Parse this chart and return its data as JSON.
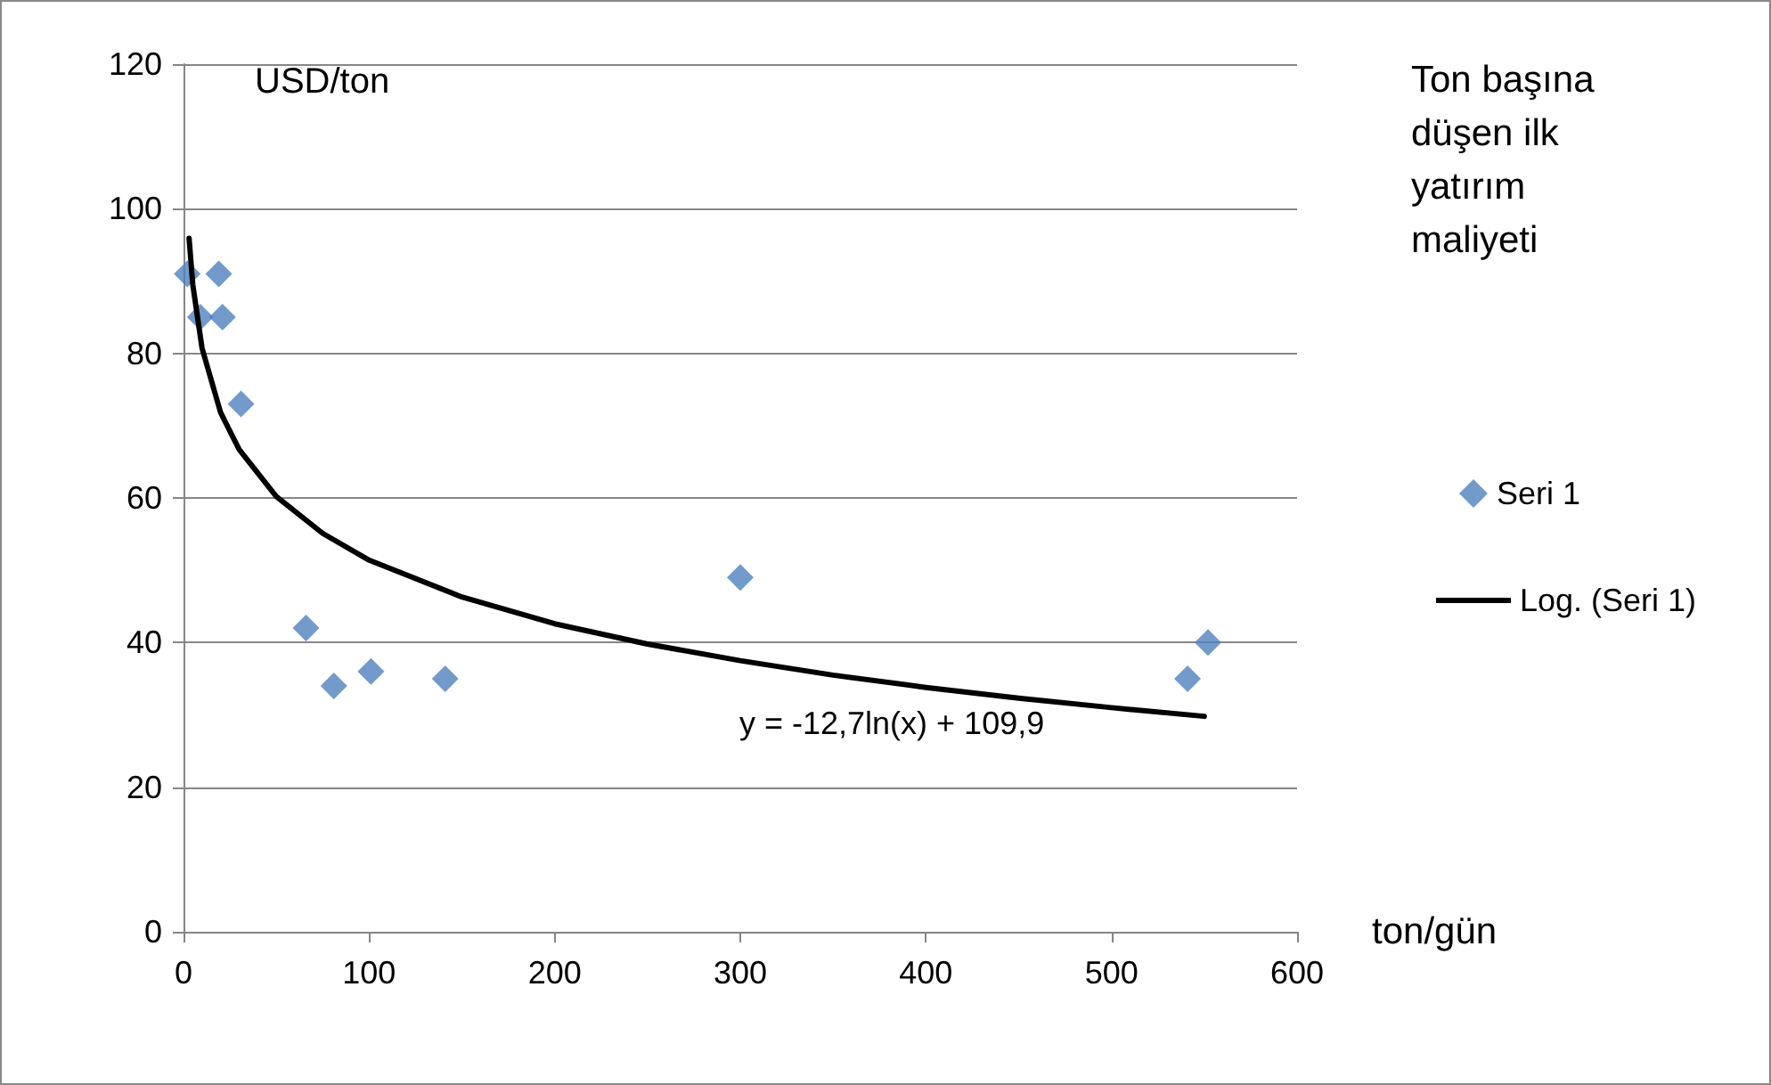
{
  "chart_data": {
    "type": "scatter",
    "title": "Ton başına düşen ilk yatırım maliyeti",
    "xlabel": "ton/gün",
    "ylabel": "USD/ton",
    "xlim": [
      0,
      600
    ],
    "xticks": [
      0,
      100,
      200,
      300,
      400,
      500,
      600
    ],
    "ylim": [
      0,
      120
    ],
    "yticks": [
      0,
      20,
      40,
      60,
      80,
      100,
      120
    ],
    "grid": "y",
    "legend": "right",
    "series": [
      {
        "name": "Seri 1",
        "marker": "diamond",
        "color": "#4f81bd",
        "x": [
          2,
          9,
          19,
          21,
          31,
          66,
          81,
          101,
          141,
          300,
          541,
          552
        ],
        "values": [
          91,
          85,
          91,
          85,
          73,
          42,
          34,
          36,
          35,
          49,
          35,
          40
        ]
      },
      {
        "name": "Log. (Seri 1)",
        "type": "line",
        "marker": "none",
        "line_style": "solid",
        "color": "#000000",
        "x": [
          3,
          5,
          10,
          20,
          30,
          50,
          75,
          100,
          150,
          200,
          250,
          300,
          350,
          400,
          450,
          500,
          550
        ],
        "values": [
          95.9,
          89.5,
          80.7,
          71.8,
          66.7,
          60.2,
          55.1,
          51.4,
          46.3,
          42.6,
          39.8,
          37.5,
          35.5,
          33.8,
          32.3,
          31.0,
          29.8
        ]
      }
    ],
    "annotations": [
      "y = -12,7ln(x) + 109,9"
    ]
  }
}
